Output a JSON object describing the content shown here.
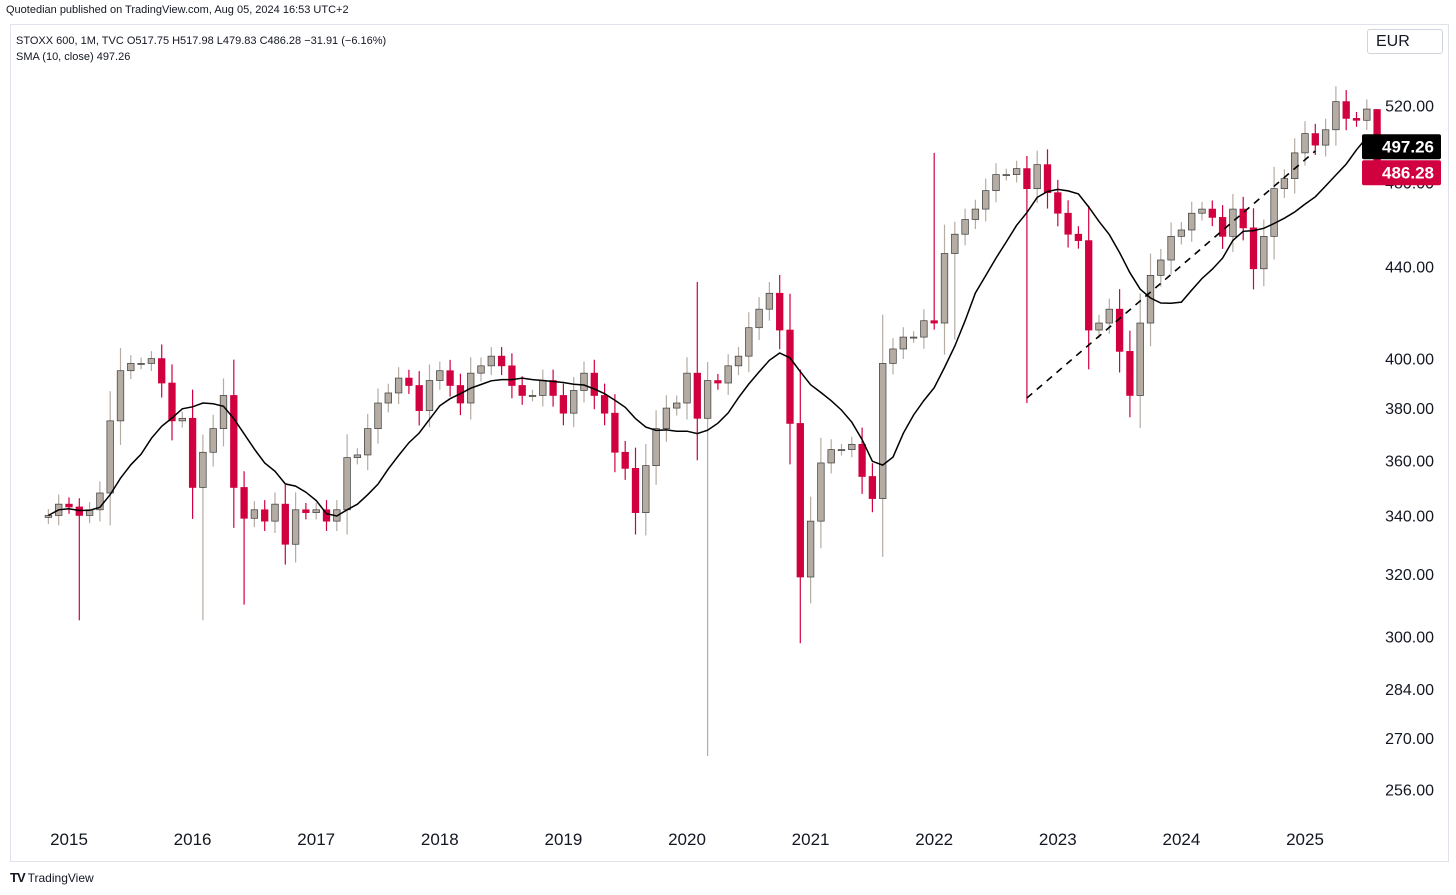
{
  "header": {
    "publish_text": "Quotedian published on TradingView.com, Aug 05, 2024 16:53 UTC+2"
  },
  "legend": {
    "line1": "STOXX 600, 1M, TVC O517.75 H517.98 L479.83 C486.28 −31.91 (−6.16%)",
    "line2": "SMA (10, close) 497.26"
  },
  "currency_button": "EUR",
  "footer": {
    "brand": "TradingView",
    "logo": "TV"
  },
  "colors": {
    "up": "#b5aca3",
    "down": "#d1003f",
    "sma": "#000000",
    "axis_text": "#131722"
  },
  "chart_data": {
    "type": "candlestick",
    "title": "STOXX 600, 1M, TVC",
    "scale": "log",
    "ylim": [
      248,
      545
    ],
    "y_ticks": [
      256,
      270,
      284,
      300,
      320,
      340,
      360,
      380,
      400,
      440,
      480,
      520
    ],
    "y_tick_labels": [
      "256.00",
      "270.00",
      "284.00",
      "300.00",
      "320.00",
      "340.00",
      "360.00",
      "380.00",
      "400.00",
      "440.00",
      "480.00",
      "520.00"
    ],
    "x_labels": [
      "2015",
      "2016",
      "2017",
      "2018",
      "2019",
      "2020",
      "2021",
      "2022",
      "2023",
      "2024",
      "2025"
    ],
    "start": "2014-11",
    "last": {
      "open": 517.75,
      "high": 517.98,
      "low": 479.83,
      "close": 486.28,
      "change": -31.91,
      "change_pct": -6.16
    },
    "sma_label": "SMA (10, close)",
    "sma_value": 497.26,
    "price_label": "486.28",
    "sma_price_label": "497.26",
    "trendline": {
      "from": [
        "2022-10",
        384
      ],
      "to": [
        "2025-02",
        496
      ]
    },
    "closes": [
      340,
      344,
      343,
      340,
      342,
      348,
      375,
      395,
      398,
      398,
      400,
      390,
      375,
      376,
      350,
      363,
      372,
      385,
      350,
      339,
      342,
      338,
      344,
      330,
      342,
      341,
      342,
      338,
      342,
      361,
      362,
      372,
      382,
      386,
      392,
      389,
      379,
      391,
      395,
      389,
      382,
      394,
      397,
      401,
      397,
      389,
      385,
      385,
      391,
      385,
      378,
      387,
      394,
      385,
      378,
      363,
      357,
      341,
      358,
      372,
      380,
      382,
      394,
      376,
      391,
      390,
      397,
      401,
      413,
      421,
      428,
      412,
      374,
      319,
      338,
      359,
      364,
      364,
      366,
      354,
      346,
      398,
      404,
      409,
      409,
      416,
      415,
      446,
      455,
      462,
      467,
      476,
      484,
      484,
      487,
      477,
      489,
      475,
      465,
      455,
      452,
      412,
      415,
      421,
      403,
      385,
      415,
      436,
      443,
      454,
      457,
      465,
      467,
      463,
      454,
      467,
      458,
      439,
      454,
      477,
      482,
      495,
      505,
      499,
      507,
      522,
      513,
      512,
      518,
      486
    ]
  }
}
